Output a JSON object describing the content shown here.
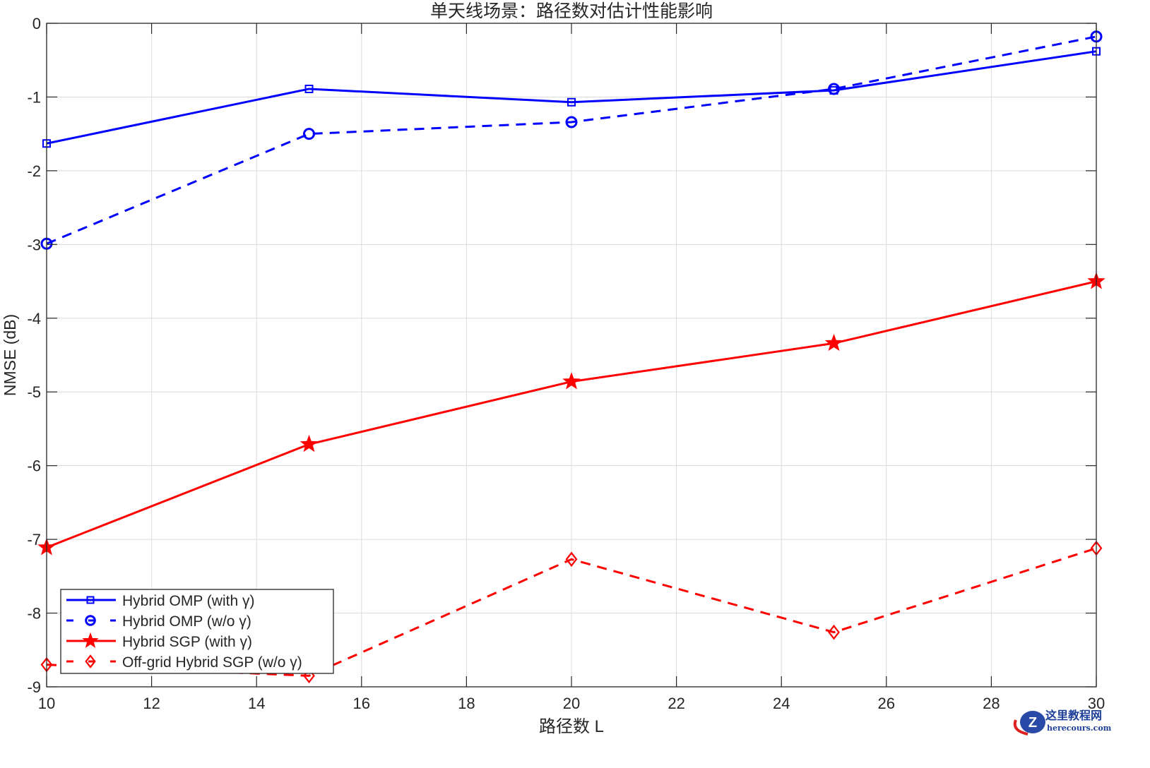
{
  "chart_data": {
    "type": "line",
    "title": "单天线场景：路径数对估计性能影响",
    "xlabel": "路径数 L",
    "ylabel": "NMSE (dB)",
    "xlim": [
      10,
      30
    ],
    "ylim": [
      -9,
      0
    ],
    "xticks": [
      10,
      12,
      14,
      16,
      18,
      20,
      22,
      24,
      26,
      28,
      30
    ],
    "yticks": [
      0,
      -1,
      -2,
      -3,
      -4,
      -5,
      -6,
      -7,
      -8,
      -9
    ],
    "grid": true,
    "legend_position": "lower left",
    "x": [
      10,
      15,
      20,
      25,
      30
    ],
    "series": [
      {
        "name": "Hybrid  OMP  (with  γ)",
        "values": [
          -1.63,
          -0.89,
          -1.07,
          -0.91,
          -0.38
        ],
        "color": "#0000FF",
        "dash": "solid",
        "marker": "square"
      },
      {
        "name": "Hybrid  OMP  (w/o  γ)",
        "values": [
          -2.99,
          -1.5,
          -1.34,
          -0.89,
          -0.18
        ],
        "color": "#0000FF",
        "dash": "dashed",
        "marker": "circle"
      },
      {
        "name": "Hybrid  SGP  (with  γ)",
        "values": [
          -7.11,
          -5.71,
          -4.86,
          -4.34,
          -3.5
        ],
        "color": "#FF0000",
        "dash": "solid",
        "marker": "star"
      },
      {
        "name": "Off-grid  Hybrid  SGP  (w/o  γ)",
        "values": [
          -8.7,
          -8.85,
          -7.27,
          -8.26,
          -7.12
        ],
        "color": "#FF0000",
        "dash": "dashed",
        "marker": "diamond"
      }
    ]
  },
  "watermark": {
    "name": "这里教程网",
    "site": "herecours.com"
  }
}
